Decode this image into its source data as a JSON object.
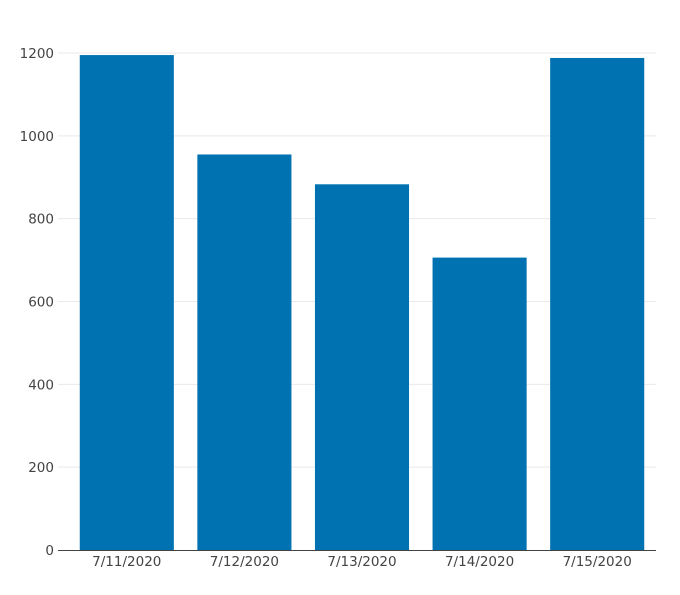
{
  "chart_data": {
    "type": "bar",
    "categories": [
      "7/11/2020",
      "7/12/2020",
      "7/13/2020",
      "7/14/2020",
      "7/15/2020"
    ],
    "values": [
      1195,
      955,
      883,
      706,
      1188
    ],
    "title": "",
    "xlabel": "",
    "ylabel": "",
    "ylim": [
      0,
      1200
    ],
    "yticks": [
      0,
      200,
      400,
      600,
      800,
      1000,
      1200
    ],
    "grid": true,
    "legend": "none",
    "bar_color": "#0072b2"
  }
}
